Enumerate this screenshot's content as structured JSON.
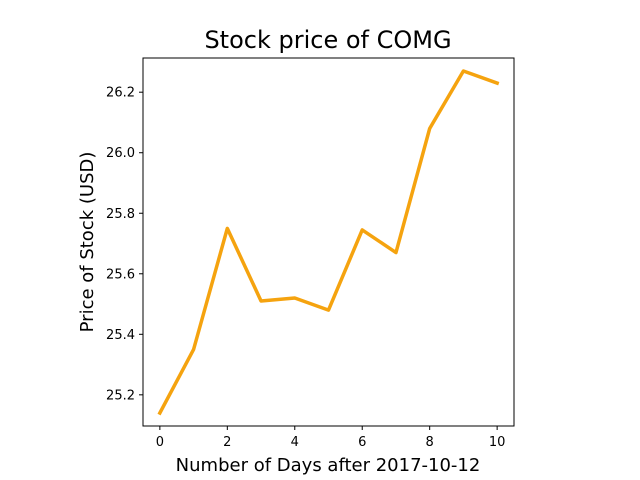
{
  "chart_data": {
    "type": "line",
    "title": "Stock price of COMG",
    "xlabel": "Number of Days after 2017-10-12",
    "ylabel": "Price of Stock (USD)",
    "x": [
      0,
      1,
      2,
      3,
      4,
      5,
      6,
      7,
      8,
      9,
      10
    ],
    "series": [
      {
        "values": [
          25.14,
          25.35,
          25.75,
          25.51,
          25.52,
          25.48,
          25.745,
          25.67,
          26.08,
          26.27,
          26.23
        ],
        "color": "#f5a30f"
      }
    ],
    "xlim": [
      -0.5,
      10.5
    ],
    "ylim": [
      25.097,
      26.313
    ],
    "xticks": [
      0,
      2,
      4,
      6,
      8,
      10
    ],
    "xtick_labels": [
      "0",
      "2",
      "4",
      "6",
      "8",
      "10"
    ],
    "yticks": [
      25.2,
      25.4,
      25.6,
      25.8,
      26.0,
      26.2
    ],
    "ytick_labels": [
      "25.2",
      "25.4",
      "25.6",
      "25.8",
      "26.0",
      "26.2"
    ],
    "grid": false,
    "legend": "none"
  }
}
